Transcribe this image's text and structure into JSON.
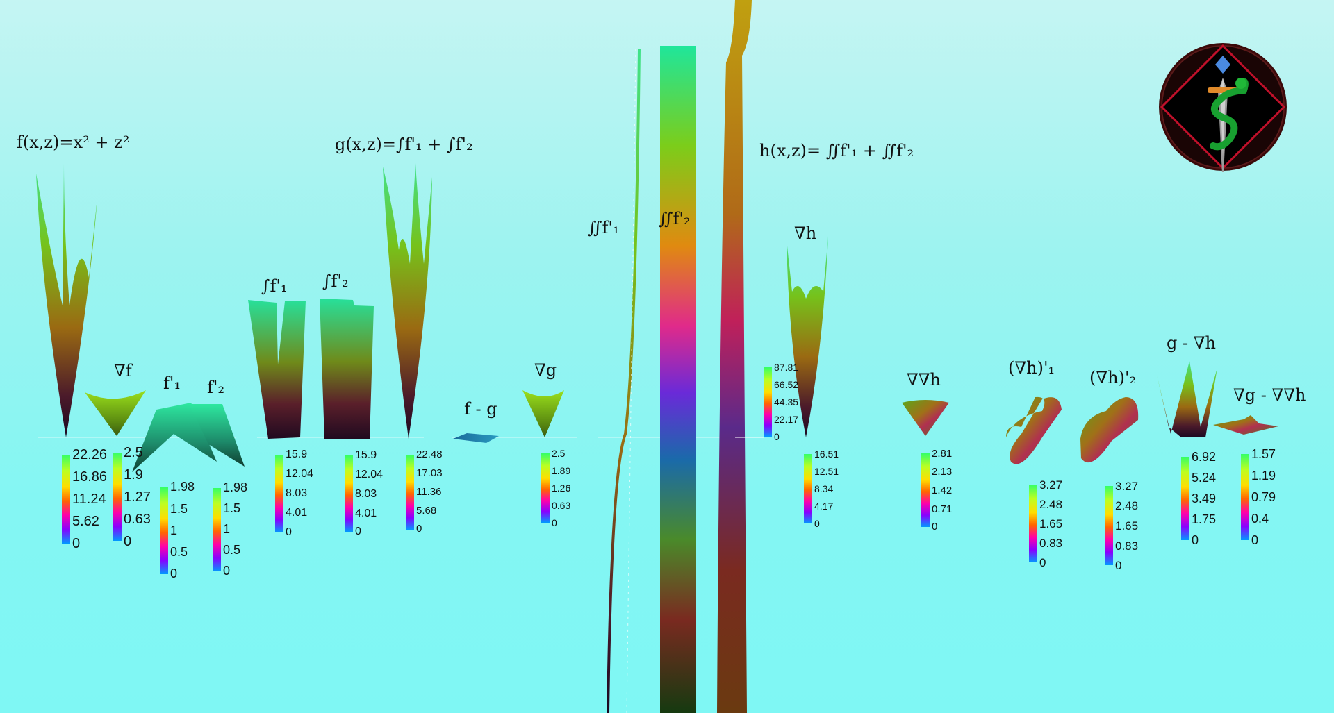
{
  "chart_data": {
    "type": "surface-3d",
    "colorbar_colors": [
      "#33ff66",
      "#bbff22",
      "#ffdd00",
      "#ff6600",
      "#ff00aa",
      "#8800ff",
      "#0099ff"
    ],
    "plots": [
      {
        "id": "f",
        "label": "f(x,z)=x² + z²",
        "colorbar": [
          "22.26",
          "16.86",
          "11.24",
          "5.62",
          "0"
        ]
      },
      {
        "id": "grad-f",
        "label": "∇f",
        "colorbar": [
          "2.5",
          "1.9",
          "1.27",
          "0.63",
          "0"
        ]
      },
      {
        "id": "f1",
        "label": "f'₁",
        "colorbar": [
          "1.98",
          "1.5",
          "1",
          "0.5",
          "0"
        ]
      },
      {
        "id": "f2",
        "label": "f'₂",
        "colorbar": [
          "1.98",
          "1.5",
          "1",
          "0.5",
          "0"
        ]
      },
      {
        "id": "int-f1",
        "label": "∫f'₁",
        "colorbar": [
          "15.9",
          "12.04",
          "8.03",
          "4.01",
          "0"
        ]
      },
      {
        "id": "int-f2",
        "label": "∫f'₂",
        "colorbar": [
          "15.9",
          "12.04",
          "8.03",
          "4.01",
          "0"
        ]
      },
      {
        "id": "g",
        "label": "g(x,z)=∫f'₁ + ∫f'₂",
        "colorbar": [
          "22.48",
          "17.03",
          "11.36",
          "5.68",
          "0"
        ]
      },
      {
        "id": "f-minus-g",
        "label": "f - g",
        "colorbar": []
      },
      {
        "id": "grad-g",
        "label": "∇g",
        "colorbar": [
          "2.5",
          "1.89",
          "1.26",
          "0.63",
          "0"
        ]
      },
      {
        "id": "dint-f1",
        "label": "∬f'₁",
        "colorbar": []
      },
      {
        "id": "dint-f2",
        "label": "∬f'₂",
        "colorbar": []
      },
      {
        "id": "h",
        "label": "h(x,z)= ∬f'₁ + ∬f'₂",
        "colorbar": [
          "87.81",
          "66.52",
          "44.35",
          "22.17",
          "0"
        ]
      },
      {
        "id": "grad-h",
        "label": "∇h",
        "colorbar": [
          "16.51",
          "12.51",
          "8.34",
          "4.17",
          "0"
        ]
      },
      {
        "id": "grad-grad-h",
        "label": "∇∇h",
        "colorbar": [
          "2.81",
          "2.13",
          "1.42",
          "0.71",
          "0"
        ]
      },
      {
        "id": "grad-h-1",
        "label": "(∇h)'₁",
        "colorbar": [
          "3.27",
          "2.48",
          "1.65",
          "0.83",
          "0"
        ]
      },
      {
        "id": "grad-h-2",
        "label": "(∇h)'₂",
        "colorbar": [
          "3.27",
          "2.48",
          "1.65",
          "0.83",
          "0"
        ]
      },
      {
        "id": "g-minus-grad-h",
        "label": "g - ∇h",
        "colorbar": [
          "6.92",
          "5.24",
          "3.49",
          "1.75",
          "0"
        ]
      },
      {
        "id": "grad-g-minus-gradgrad-h",
        "label": "∇g - ∇∇h",
        "colorbar": [
          "1.57",
          "1.19",
          "0.79",
          "0.4",
          "0"
        ]
      }
    ]
  }
}
